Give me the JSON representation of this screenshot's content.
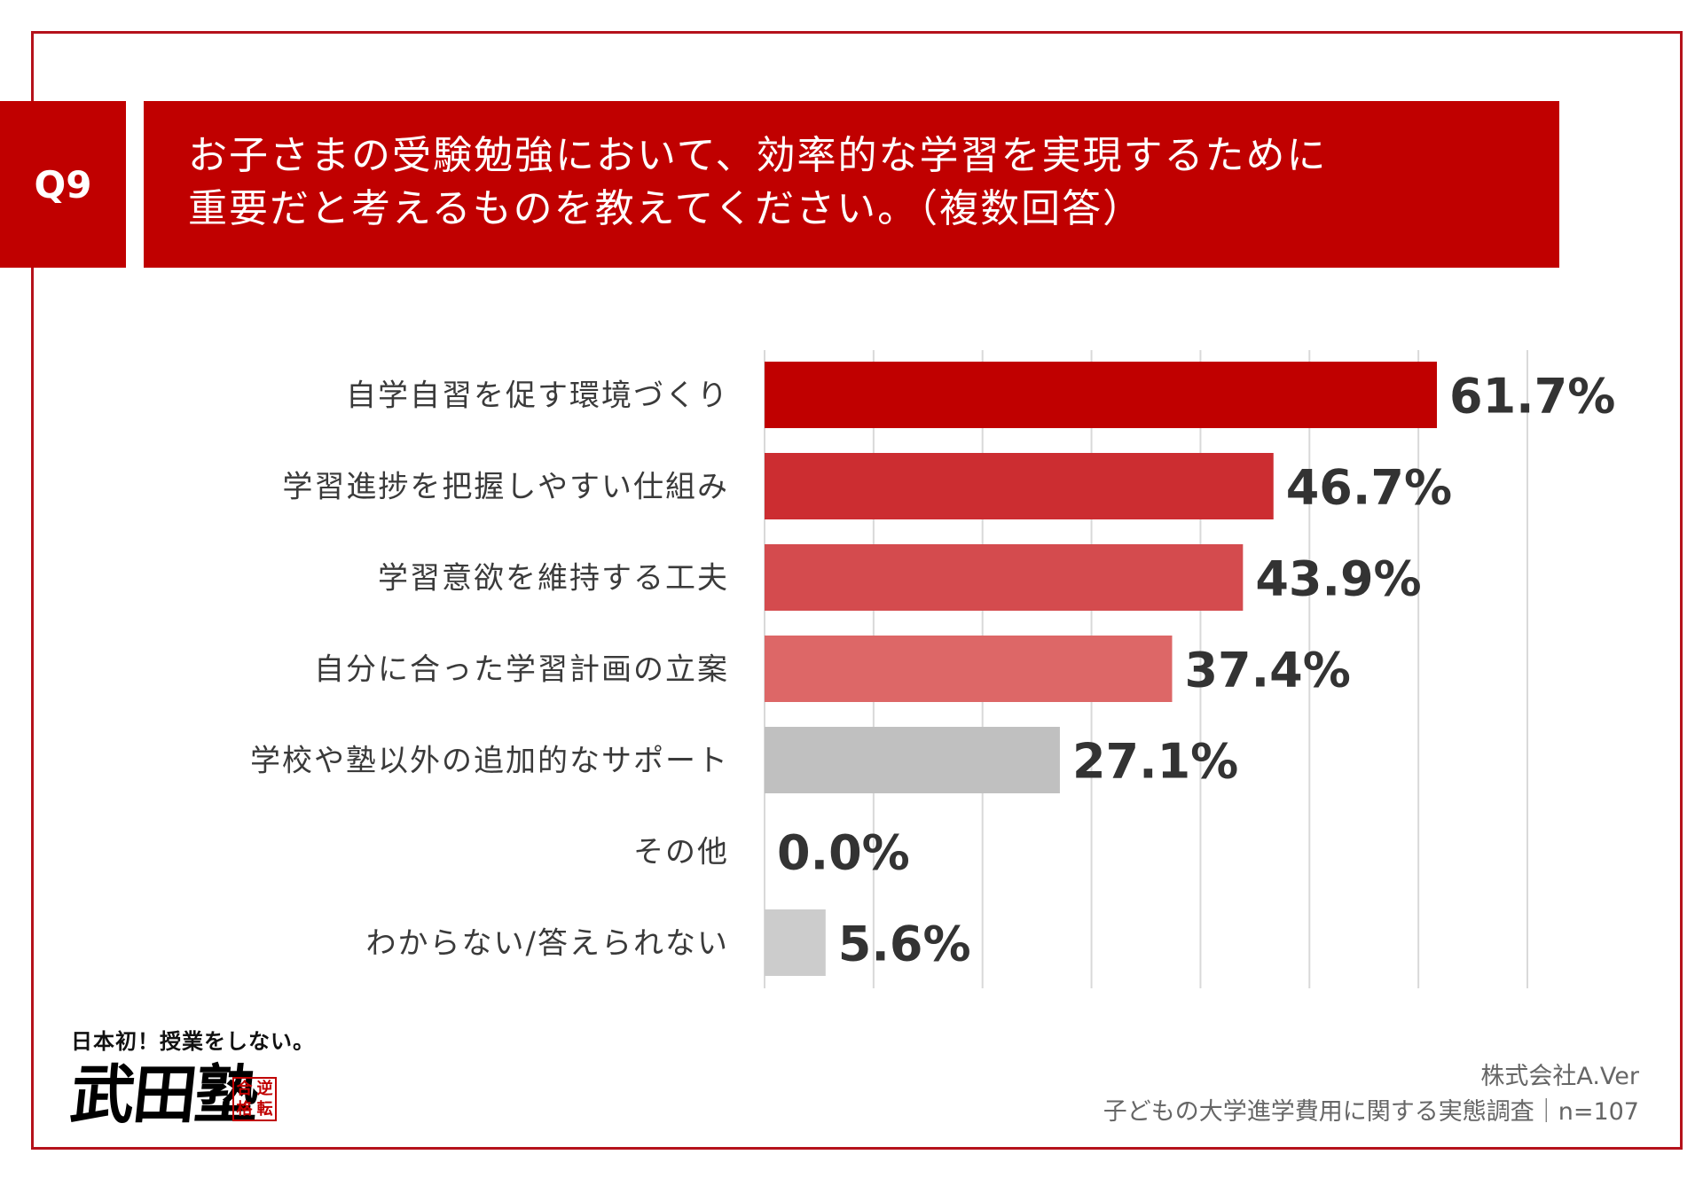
{
  "question": {
    "badge": "Q9",
    "line1": "お子さまの受験勉強において、効率的な学習を実現するために",
    "line2": "重要だと考えるものを教えてください。（複数回答）"
  },
  "chart_data": {
    "type": "bar",
    "orientation": "horizontal",
    "categories": [
      "自学自習を促す環境づくり",
      "学習進捗を把握しやすい仕組み",
      "学習意欲を維持する工夫",
      "自分に合った学習計画の立案",
      "学校や塾以外の追加的なサポート",
      "その他",
      "わからない/答えられない"
    ],
    "values": [
      61.7,
      46.7,
      43.9,
      37.4,
      27.1,
      0.0,
      5.6
    ],
    "value_labels": [
      "61.7%",
      "46.7%",
      "43.9%",
      "37.4%",
      "27.1%",
      "0.0%",
      "5.6%"
    ],
    "colors": [
      "#c00000",
      "#cc2d31",
      "#d44b4e",
      "#dd6767",
      "#c0c0c0",
      "#c0c0c0",
      "#cccccc"
    ],
    "xlim": [
      0,
      70
    ],
    "grid": true,
    "title": "",
    "xlabel": "",
    "ylabel": ""
  },
  "logo": {
    "tagline": "日本初！授業をしない。",
    "name": "武田塾",
    "stamp": [
      "逆",
      "合",
      "転",
      "格"
    ]
  },
  "source": {
    "company": "株式会社A.Ver",
    "survey": "子どもの大学進学費用に関する実態調査｜n=107"
  }
}
